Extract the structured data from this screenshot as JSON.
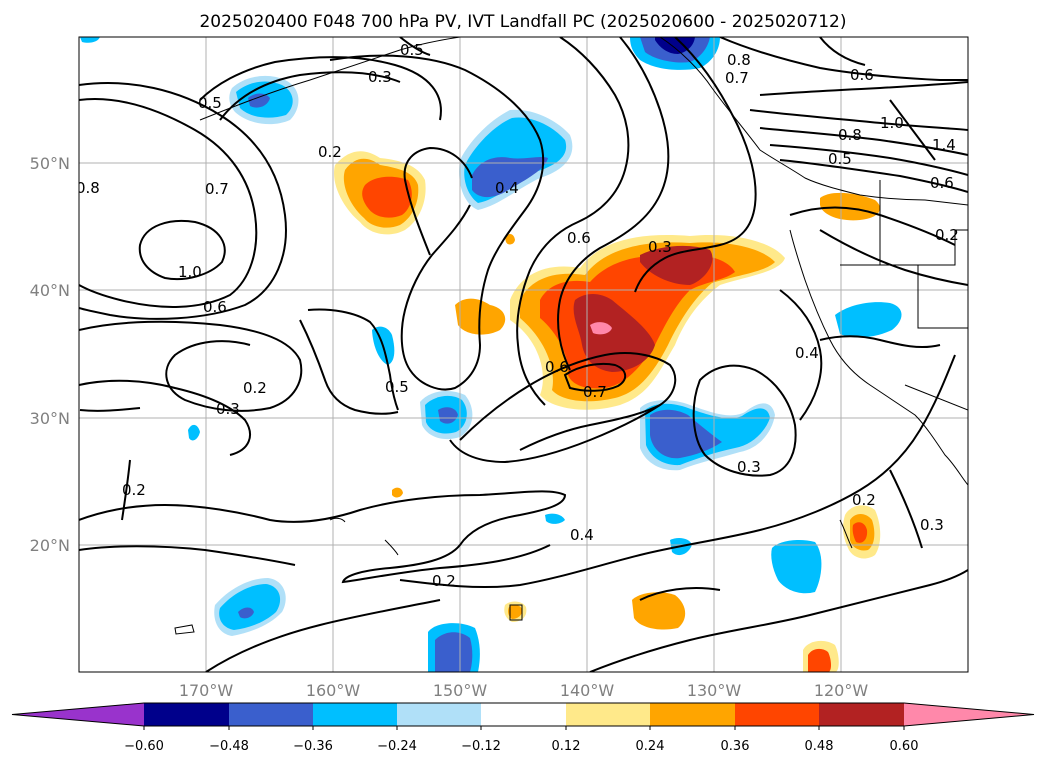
{
  "title": "2025020400 F048 700 hPa PV, IVT Landfall PC (2025020600 - 2025020712)",
  "map": {
    "lon_labels": [
      "170°W",
      "160°W",
      "150°W",
      "140°W",
      "130°W",
      "120°W"
    ],
    "lat_labels": [
      "50°N",
      "40°N",
      "30°N",
      "20°N"
    ],
    "contour_labels": [
      "0.5",
      "0.3",
      "0.5",
      "0.2",
      "0.7",
      "0.8",
      "1.0",
      "0.6",
      "0.2",
      "0.3",
      "0.5",
      "0.2",
      "0.4",
      "0.6",
      "0.3",
      "0.6",
      "0.7",
      "0.8",
      "0.7",
      "0.6",
      "0.8",
      "0.5",
      "1.0",
      "1.4",
      "0.6",
      "0.2",
      "0.4",
      "0.3",
      "0.4",
      "0.2",
      "0.2",
      "0.3"
    ],
    "colors": {
      "neg_extreme": "#9933cc",
      "neg_048": "#00008b",
      "neg_036": "#3a5fcd",
      "neg_024": "#00bfff",
      "neg_012": "#b0e0f8",
      "neutral": "#ffffff",
      "pos_012": "#ffe98a",
      "pos_024": "#ffa500",
      "pos_036": "#ff4500",
      "pos_048": "#b22222",
      "pos_060": "#ff88aa"
    }
  },
  "colorbar": {
    "ticks": [
      "−0.60",
      "−0.48",
      "−0.36",
      "−0.24",
      "−0.12",
      "0.12",
      "0.24",
      "0.36",
      "0.48",
      "0.60"
    ],
    "bins": [
      {
        "color": "#9933cc"
      },
      {
        "color": "#00008b"
      },
      {
        "color": "#3a5fcd"
      },
      {
        "color": "#00bfff"
      },
      {
        "color": "#b0e0f8"
      },
      {
        "color": "#ffffff"
      },
      {
        "color": "#ffe98a"
      },
      {
        "color": "#ffa500"
      },
      {
        "color": "#ff4500"
      },
      {
        "color": "#b22222"
      },
      {
        "color": "#ff88aa"
      }
    ]
  }
}
